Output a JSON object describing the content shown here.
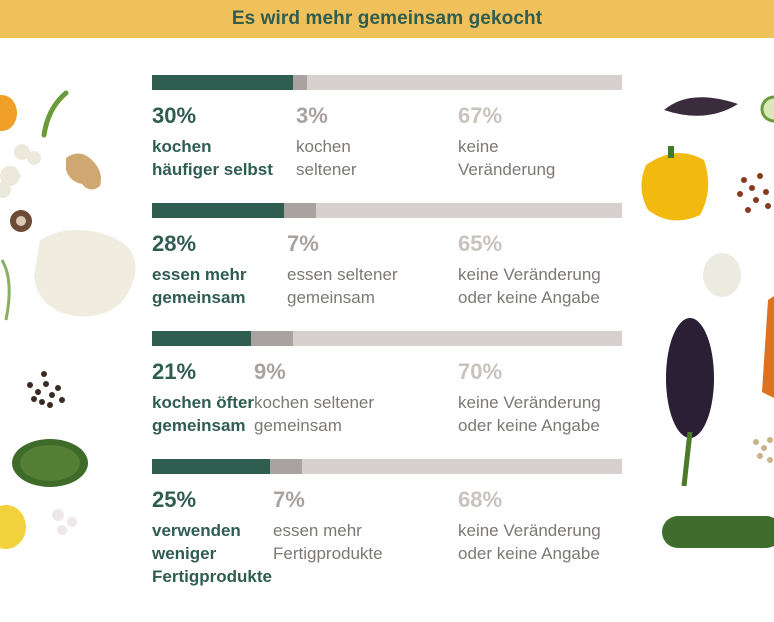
{
  "header": {
    "title": "Es wird mehr gemeinsam gekocht"
  },
  "colors": {
    "header_bg": "#f0c05a",
    "positive": "#2f5d50",
    "negative": "#a8a3a0",
    "neutral": "#d6d0ce"
  },
  "chart_data": {
    "type": "stacked-bar",
    "title": "Es wird mehr gemeinsam gekocht",
    "unit": "%",
    "rows": [
      {
        "positive": {
          "value": 30,
          "pct": "30%",
          "label": [
            "kochen",
            "häufiger selbst"
          ]
        },
        "negative": {
          "value": 3,
          "pct": "3%",
          "label": [
            "kochen",
            "seltener"
          ]
        },
        "neutral": {
          "value": 67,
          "pct": "67%",
          "label": [
            "keine",
            "Veränderung"
          ]
        }
      },
      {
        "positive": {
          "value": 28,
          "pct": "28%",
          "label": [
            "essen mehr",
            "gemeinsam"
          ]
        },
        "negative": {
          "value": 7,
          "pct": "7%",
          "label": [
            "essen seltener",
            "gemeinsam"
          ]
        },
        "neutral": {
          "value": 65,
          "pct": "65%",
          "label": [
            "keine Veränderung",
            "oder keine Angabe"
          ]
        }
      },
      {
        "positive": {
          "value": 21,
          "pct": "21%",
          "label": [
            "kochen öfter",
            "gemeinsam"
          ]
        },
        "negative": {
          "value": 9,
          "pct": "9%",
          "label": [
            "kochen seltener",
            "gemeinsam"
          ]
        },
        "neutral": {
          "value": 70,
          "pct": "70%",
          "label": [
            "keine Veränderung",
            "oder keine Angabe"
          ]
        }
      },
      {
        "positive": {
          "value": 25,
          "pct": "25%",
          "label": [
            "verwenden",
            "weniger",
            "Fertigprodukte"
          ]
        },
        "negative": {
          "value": 7,
          "pct": "7%",
          "label": [
            "essen mehr",
            "Fertigprodukte"
          ]
        },
        "neutral": {
          "value": 68,
          "pct": "68%",
          "label": [
            "keine Veränderung",
            "oder keine Angabe"
          ]
        }
      }
    ]
  }
}
